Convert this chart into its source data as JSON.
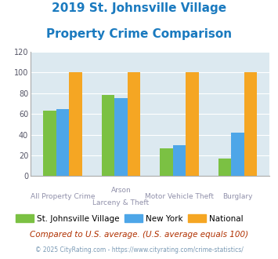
{
  "title_line1": "2019 St. Johnsville Village",
  "title_line2": "Property Crime Comparison",
  "title_color": "#1a7abf",
  "cat_labels_row1": [
    "All Property Crime",
    "Arson",
    "Motor Vehicle Theft",
    "Burglary"
  ],
  "cat_labels_row2": [
    "",
    "Larceny & Theft",
    "",
    ""
  ],
  "values_village": [
    63,
    78,
    27,
    17
  ],
  "values_ny": [
    65,
    75,
    30,
    42
  ],
  "values_national": [
    100,
    100,
    100,
    100
  ],
  "color_village": "#7bc143",
  "color_ny": "#4da6e8",
  "color_national": "#f5a623",
  "legend_labels": [
    "St. Johnsville Village",
    "New York",
    "National"
  ],
  "note": "Compared to U.S. average. (U.S. average equals 100)",
  "note_color": "#b03000",
  "footer": "© 2025 CityRating.com - https://www.cityrating.com/crime-statistics/",
  "footer_color": "#7a9ab5",
  "ylim": [
    0,
    120
  ],
  "yticks": [
    0,
    20,
    40,
    60,
    80,
    100,
    120
  ],
  "bg_color": "#dce9f0",
  "fig_bg": "#ffffff",
  "xlabel_color": "#9090aa",
  "bar_width": 0.22
}
